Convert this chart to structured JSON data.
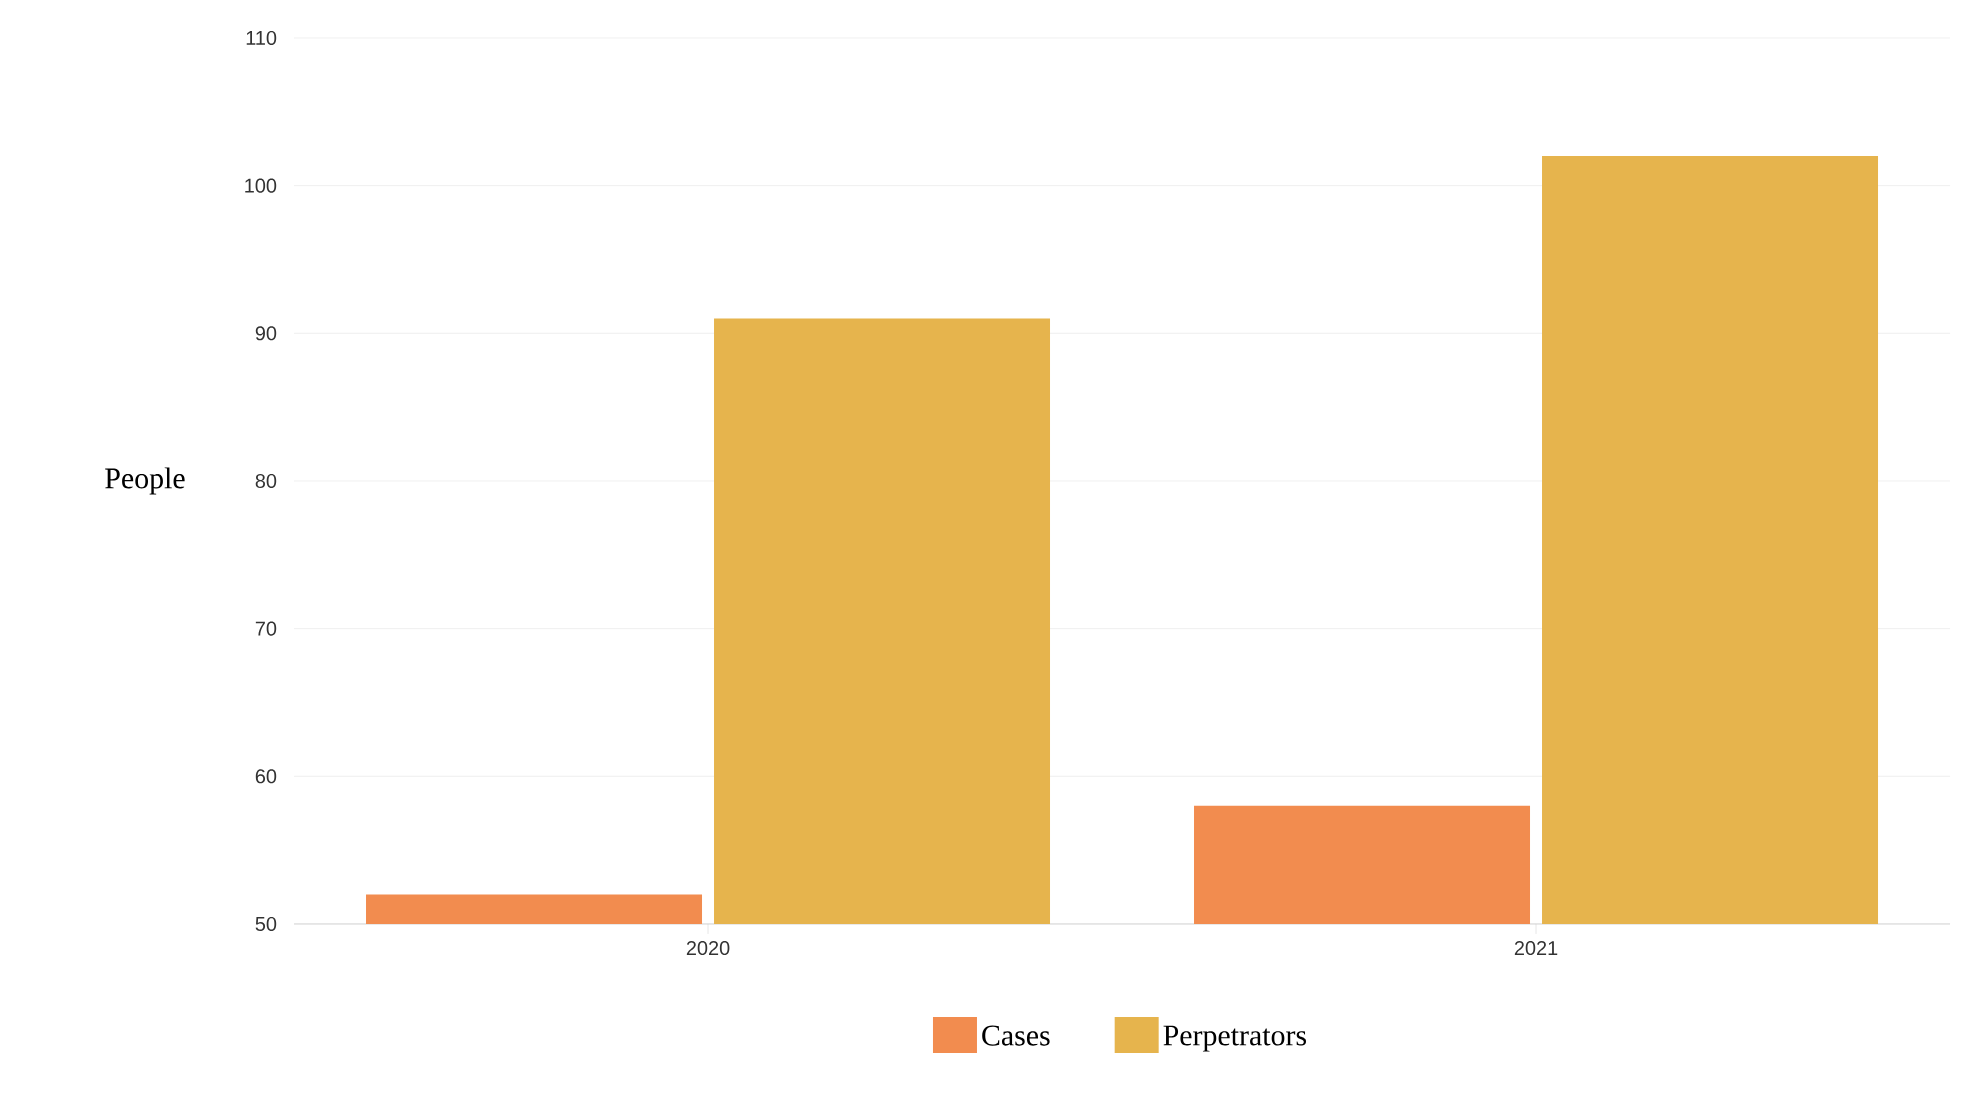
{
  "chart_data": {
    "type": "bar",
    "ylabel": "People",
    "categories": [
      "2020",
      "2021"
    ],
    "series": [
      {
        "name": "Cases",
        "color": "#f28c4f",
        "values": [
          52,
          58
        ]
      },
      {
        "name": "Perpetrators",
        "color": "#e6b44d",
        "values": [
          91,
          102
        ]
      }
    ],
    "ylim": [
      50,
      110
    ],
    "yticks": [
      50,
      60,
      70,
      80,
      90,
      100,
      110
    ],
    "grid": "y",
    "legend": "bottom"
  }
}
